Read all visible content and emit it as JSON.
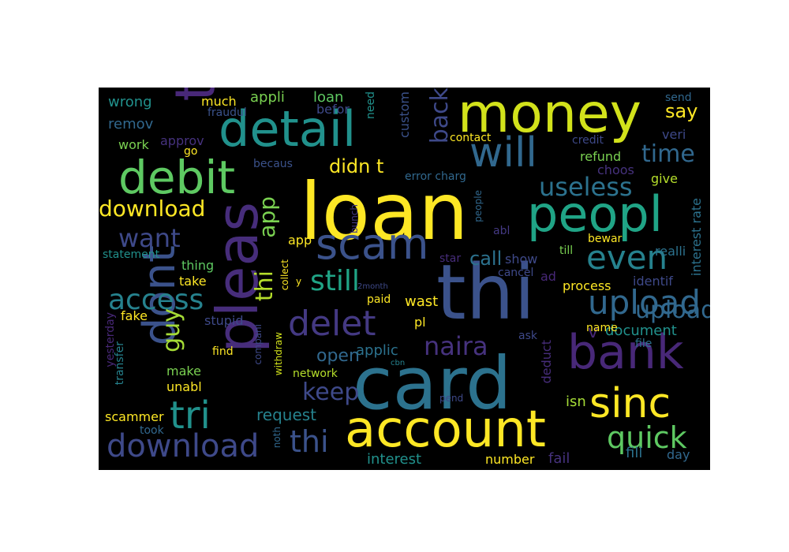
{
  "wordcloud": {
    "background": "#000000",
    "words": [
      {
        "text": "loan",
        "color": "#fde725"
      },
      {
        "text": "thi",
        "color": "#3b528b"
      },
      {
        "text": "card",
        "color": "#2c728e"
      },
      {
        "text": "money",
        "color": "#d2e21b"
      },
      {
        "text": "account",
        "color": "#fde725"
      },
      {
        "text": "pleas",
        "color": "#472d7b"
      },
      {
        "text": "detail",
        "color": "#21918c"
      },
      {
        "text": "peopl",
        "color": "#20a486"
      },
      {
        "text": "t",
        "color": "#482878"
      },
      {
        "text": "bank",
        "color": "#482878"
      },
      {
        "text": "dont",
        "color": "#3b528b"
      },
      {
        "text": "debit",
        "color": "#5ec962"
      },
      {
        "text": "scam",
        "color": "#3b528b"
      },
      {
        "text": "will",
        "color": "#31688e"
      },
      {
        "text": "sinc",
        "color": "#fde725"
      },
      {
        "text": "tri",
        "color": "#21918c"
      },
      {
        "text": "download",
        "color": "#3e4989"
      },
      {
        "text": "upload",
        "color": "#31688e"
      },
      {
        "text": "even",
        "color": "#26828e"
      },
      {
        "text": "delet",
        "color": "#443983"
      },
      {
        "text": "quick",
        "color": "#5ec962"
      },
      {
        "text": "still",
        "color": "#20a486"
      },
      {
        "text": "access",
        "color": "#26828e"
      },
      {
        "text": "useless",
        "color": "#2c728e"
      },
      {
        "text": "time",
        "color": "#31688e"
      },
      {
        "text": "want",
        "color": "#3e4989"
      },
      {
        "text": "download",
        "color": "#fde725"
      },
      {
        "text": "thi",
        "color": "#3b528b"
      },
      {
        "text": "naira",
        "color": "#46327e"
      },
      {
        "text": "back",
        "color": "#3e4989"
      },
      {
        "text": "didn t",
        "color": "#fde725"
      },
      {
        "text": "keep",
        "color": "#3e4989"
      },
      {
        "text": "upload",
        "color": "#31688e"
      },
      {
        "text": "guy",
        "color": "#a5db36"
      },
      {
        "text": "app",
        "color": "#7ad151"
      },
      {
        "text": "thi",
        "color": "#b5de2b"
      },
      {
        "text": "say",
        "color": "#fde725"
      },
      {
        "text": "call",
        "color": "#2c728e"
      },
      {
        "text": "open",
        "color": "#31688e"
      },
      {
        "text": "request",
        "color": "#26828e"
      },
      {
        "text": "interest",
        "color": "#21918c"
      },
      {
        "text": "fill",
        "color": "#2c728e"
      },
      {
        "text": "wast",
        "color": "#fde725"
      },
      {
        "text": "applic",
        "color": "#2c728e"
      },
      {
        "text": "v",
        "color": "#482878"
      },
      {
        "text": "document",
        "color": "#21918c"
      },
      {
        "text": "isn",
        "color": "#a5db36"
      },
      {
        "text": "fail",
        "color": "#46327e"
      },
      {
        "text": "number",
        "color": "#fde725"
      },
      {
        "text": "day",
        "color": "#31688e"
      },
      {
        "text": "wrong",
        "color": "#21918c"
      },
      {
        "text": "remov",
        "color": "#31688e"
      },
      {
        "text": "work",
        "color": "#7ad151"
      },
      {
        "text": "approv",
        "color": "#46327e"
      },
      {
        "text": "much",
        "color": "#fde725"
      },
      {
        "text": "appli",
        "color": "#7ad151"
      },
      {
        "text": "loan",
        "color": "#5ec962"
      },
      {
        "text": "befor",
        "color": "#3e4989"
      },
      {
        "text": "fraudul",
        "color": "#3b528b"
      },
      {
        "text": "custom",
        "color": "#3b528b"
      },
      {
        "text": "need",
        "color": "#21918c"
      },
      {
        "text": "send",
        "color": "#31688e"
      },
      {
        "text": "veri",
        "color": "#3e4989"
      },
      {
        "text": "refund",
        "color": "#7ad151"
      },
      {
        "text": "credit",
        "color": "#3e4989"
      },
      {
        "text": "contact",
        "color": "#fde725"
      },
      {
        "text": "choos",
        "color": "#46327e"
      },
      {
        "text": "give",
        "color": "#b5de2b"
      },
      {
        "text": "go",
        "color": "#fde725"
      },
      {
        "text": "becaus",
        "color": "#3b528b"
      },
      {
        "text": "error charg",
        "color": "#31688e"
      },
      {
        "text": "interest rate",
        "color": "#2c728e"
      },
      {
        "text": "app",
        "color": "#fde725"
      },
      {
        "text": "statement",
        "color": "#21918c"
      },
      {
        "text": "thing",
        "color": "#5ec962"
      },
      {
        "text": "take",
        "color": "#fde725"
      },
      {
        "text": "fake",
        "color": "#fde725"
      },
      {
        "text": "stupid",
        "color": "#3e4989"
      },
      {
        "text": "show",
        "color": "#3e4989"
      },
      {
        "text": "cancel",
        "color": "#3e4989"
      },
      {
        "text": "ad",
        "color": "#482878"
      },
      {
        "text": "process",
        "color": "#fde725"
      },
      {
        "text": "identif",
        "color": "#3e4989"
      },
      {
        "text": "realli",
        "color": "#2c728e"
      },
      {
        "text": "bewar",
        "color": "#fde725"
      },
      {
        "text": "till",
        "color": "#7ad151"
      },
      {
        "text": "star",
        "color": "#472d7b"
      },
      {
        "text": "pl",
        "color": "#fde725"
      },
      {
        "text": "paid",
        "color": "#fde725"
      },
      {
        "text": "ask",
        "color": "#3e4989"
      },
      {
        "text": "name",
        "color": "#fde725"
      },
      {
        "text": "file",
        "color": "#2c728e"
      },
      {
        "text": "deduct",
        "color": "#472d7b"
      },
      {
        "text": "find",
        "color": "#fde725"
      },
      {
        "text": "make",
        "color": "#7ad151"
      },
      {
        "text": "unabl",
        "color": "#fde725"
      },
      {
        "text": "network",
        "color": "#b5de2b"
      },
      {
        "text": "took",
        "color": "#31688e"
      },
      {
        "text": "scammer",
        "color": "#fde725"
      },
      {
        "text": "yesterday",
        "color": "#482878"
      },
      {
        "text": "transfer",
        "color": "#26828e"
      },
      {
        "text": "withdraw",
        "color": "#d2e21b"
      },
      {
        "text": "compani",
        "color": "#3e4989"
      },
      {
        "text": "collect",
        "color": "#fde725"
      },
      {
        "text": "noth",
        "color": "#31688e"
      },
      {
        "text": "people",
        "color": "#31688e"
      },
      {
        "text": "abl",
        "color": "#443983"
      },
      {
        "text": "pend",
        "color": "#3e4989"
      },
      {
        "text": "cbn",
        "color": "#26828e"
      },
      {
        "text": "bunch",
        "color": "#443983"
      },
      {
        "text": "y",
        "color": "#fde725"
      },
      {
        "text": "2month",
        "color": "#3e4989"
      }
    ]
  }
}
